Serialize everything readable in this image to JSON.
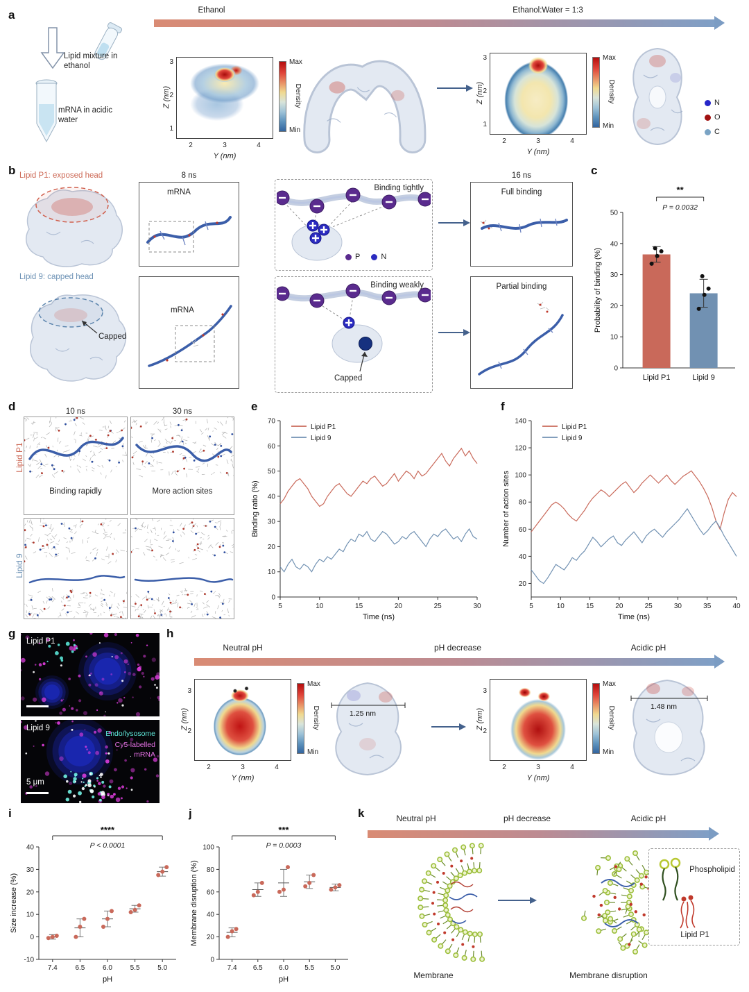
{
  "colors": {
    "lipid_p1_red": "#c9695a",
    "lipid_9_blue": "#7191b2",
    "gradient_start": "#d98b74",
    "gradient_end": "#7b9cc3",
    "purple_p": "#5a2b8e",
    "blue_n": "#2b2bc0",
    "mrna_blue": "#3b5ea9",
    "magenta": "#e33fe3",
    "cyan": "#4fe0d0",
    "atom_n": "#2626c9",
    "atom_o": "#a11212",
    "atom_c": "#7aa3c4"
  },
  "panel_a": {
    "label": "a",
    "arrow_label_left": "Ethanol",
    "arrow_label_right": "Ethanol:Water = 1:3",
    "caption_lipid": "Lipid mixture in ethanol",
    "caption_mrna": "mRNA in acidic water",
    "density1": {
      "colorbar_max": "Max",
      "colorbar_min": "Min",
      "colorbar_label": "Density",
      "xlabel": "Y (nm)",
      "ylabel": "Z (nm)",
      "xticks": [
        "2",
        "3",
        "4"
      ],
      "yticks": [
        "3",
        "2",
        "1"
      ]
    },
    "density2": {
      "colorbar_max": "Max",
      "colorbar_min": "Min",
      "colorbar_label": "Density",
      "xlabel": "Y (nm)",
      "ylabel": "Z (nm)",
      "xticks": [
        "2",
        "3",
        "4"
      ],
      "yticks": [
        "3",
        "2",
        "1"
      ]
    },
    "atom_legend": [
      {
        "label": "N",
        "color": "#2626c9"
      },
      {
        "label": "O",
        "color": "#a11212"
      },
      {
        "label": "C",
        "color": "#7aa3c4"
      }
    ]
  },
  "panel_b": {
    "label": "b",
    "p1_title": "Lipid P1: exposed head",
    "l9_title": "Lipid 9: capped head",
    "t8": "8 ns",
    "t16": "16 ns",
    "mrna1": "mRNA",
    "mrna2": "mRNA",
    "binding_tightly": "Binding tightly",
    "binding_weakly": "Binding weakly",
    "full_binding": "Full binding",
    "partial_binding": "Partial binding",
    "capped1": "Capped",
    "capped2": "Capped",
    "legend_p": "P",
    "legend_n": "N"
  },
  "panel_d": {
    "label": "d",
    "col1": "10 ns",
    "col2": "30 ns",
    "row1": "Lipid P1",
    "row2": "Lipid 9",
    "note1": "Binding rapidly",
    "note2": "More action sites"
  },
  "panel_g": {
    "label": "g",
    "image1_label": "Lipid P1",
    "image2_label": "Lipid 9",
    "legend_endo": "Endo/lysosome",
    "legend_cy5_1": "Cy5-labelled",
    "legend_cy5_2": "mRNA",
    "scale": "5 μm"
  },
  "panel_h": {
    "label": "h",
    "stage1": "Neutral pH",
    "stage2": "pH decrease",
    "stage3": "Acidic pH",
    "density1": {
      "colorbar_max": "Max",
      "colorbar_min": "Min",
      "colorbar_label": "Density",
      "xlabel": "Y (nm)",
      "ylabel": "Z (nm)",
      "xticks": [
        "2",
        "3",
        "4"
      ],
      "yticks": [
        "3",
        "2"
      ]
    },
    "density2": {
      "colorbar_max": "Max",
      "colorbar_min": "Min",
      "colorbar_label": "Density",
      "xlabel": "Y (nm)",
      "ylabel": "Z (nm)",
      "xticks": [
        "2",
        "3",
        "4"
      ],
      "yticks": [
        "3",
        "2"
      ]
    },
    "measure1": "1.25 nm",
    "measure2": "1.48 nm"
  },
  "panel_k": {
    "label": "k",
    "stage1": "Neutral pH",
    "stage2": "pH decrease",
    "stage3": "Acidic pH",
    "membrane": "Membrane",
    "membrane_disruption": "Membrane disruption",
    "phospholipid": "Phospholipid",
    "lipid_p1": "Lipid P1"
  },
  "chart_data": [
    {
      "id": "c",
      "panel_label": "c",
      "type": "bar",
      "categories": [
        "Lipid P1",
        "Lipid 9"
      ],
      "values": [
        36.5,
        24
      ],
      "errors": [
        2.5,
        4.5
      ],
      "points": [
        [
          33.5,
          36,
          37.5,
          38.5
        ],
        [
          19,
          23.5,
          25.5,
          29.5
        ]
      ],
      "bar_colors": [
        "#c9695a",
        "#7191b2"
      ],
      "ylabel": "Probability of binding (%)",
      "ylim": [
        0,
        50
      ],
      "yticks": [
        0,
        10,
        20,
        30,
        40,
        50
      ],
      "significance": "**",
      "p_value": "P = 0.0032"
    },
    {
      "id": "e",
      "panel_label": "e",
      "type": "line",
      "xlabel": "Time (ns)",
      "ylabel": "Binding ratio (%)",
      "xlim": [
        5,
        30
      ],
      "ylim": [
        0,
        70
      ],
      "xticks": [
        5,
        10,
        15,
        20,
        25,
        30
      ],
      "yticks": [
        0,
        10,
        20,
        30,
        40,
        50,
        60,
        70
      ],
      "x_start": 5,
      "x_step": 0.5,
      "series": [
        {
          "name": "Lipid P1",
          "color": "#c9695a",
          "values": [
            37,
            39,
            42,
            44,
            46,
            47,
            45,
            43,
            40,
            38,
            36,
            37,
            40,
            42,
            44,
            45,
            43,
            41,
            40,
            42,
            44,
            46,
            45,
            47,
            48,
            46,
            44,
            45,
            47,
            49,
            46,
            48,
            50,
            49,
            47,
            50,
            48,
            49,
            51,
            53,
            55,
            57,
            54,
            52,
            55,
            57,
            59,
            56,
            58,
            55,
            53
          ]
        },
        {
          "name": "Lipid 9",
          "color": "#7191b2",
          "values": [
            12,
            10,
            13,
            15,
            12,
            11,
            13,
            12,
            10,
            13,
            15,
            14,
            16,
            15,
            17,
            19,
            18,
            21,
            23,
            22,
            25,
            24,
            26,
            23,
            22,
            24,
            26,
            25,
            23,
            21,
            22,
            24,
            23,
            25,
            26,
            24,
            22,
            20,
            23,
            25,
            24,
            26,
            27,
            25,
            23,
            24,
            22,
            25,
            27,
            24,
            23
          ]
        }
      ],
      "legend_position": "top-left",
      "grid": false
    },
    {
      "id": "f",
      "panel_label": "f",
      "type": "line",
      "xlabel": "Time (ns)",
      "ylabel": "Number of action sites",
      "xlim": [
        5,
        40
      ],
      "ylim": [
        10,
        140
      ],
      "xticks": [
        5,
        10,
        15,
        20,
        25,
        30,
        35,
        40
      ],
      "yticks": [
        20,
        40,
        60,
        80,
        100,
        120,
        140
      ],
      "x_start": 5,
      "x_step": 0.7,
      "series": [
        {
          "name": "Lipid P1",
          "color": "#c9695a",
          "values": [
            58,
            62,
            66,
            70,
            74,
            78,
            80,
            78,
            75,
            71,
            68,
            66,
            70,
            74,
            79,
            83,
            86,
            89,
            87,
            84,
            87,
            90,
            93,
            95,
            91,
            87,
            90,
            94,
            97,
            100,
            97,
            94,
            97,
            100,
            96,
            93,
            96,
            99,
            101,
            103,
            99,
            95,
            90,
            84,
            76,
            66,
            60,
            72,
            82,
            87,
            84
          ]
        },
        {
          "name": "Lipid 9",
          "color": "#7191b2",
          "values": [
            30,
            26,
            22,
            20,
            24,
            29,
            34,
            32,
            30,
            34,
            39,
            37,
            41,
            44,
            49,
            54,
            51,
            47,
            50,
            53,
            55,
            50,
            48,
            52,
            55,
            58,
            54,
            50,
            55,
            58,
            60,
            57,
            54,
            58,
            61,
            64,
            67,
            71,
            75,
            70,
            65,
            60,
            56,
            59,
            63,
            66,
            61,
            55,
            50,
            45,
            40
          ]
        }
      ],
      "legend_position": "top-left",
      "grid": false
    },
    {
      "id": "i",
      "panel_label": "i",
      "type": "scatter",
      "categories": [
        "7.4",
        "6.5",
        "6.0",
        "5.5",
        "5.0"
      ],
      "points": [
        [
          -0.5,
          0,
          0.5
        ],
        [
          0,
          4.5,
          8
        ],
        [
          4.5,
          8,
          11.5
        ],
        [
          11,
          12,
          14
        ],
        [
          27.5,
          29,
          31
        ]
      ],
      "means": [
        0,
        4,
        8,
        12.5,
        29
      ],
      "errors": [
        1,
        4,
        3.5,
        1.5,
        2
      ],
      "color": "#c9695a",
      "ylabel": "Size increase (%)",
      "xlabel": "pH",
      "ylim": [
        -10,
        40
      ],
      "yticks": [
        -10,
        0,
        10,
        20,
        30,
        40
      ],
      "significance": "****",
      "p_value": "P < 0.0001"
    },
    {
      "id": "j",
      "panel_label": "j",
      "type": "scatter",
      "categories": [
        "7.4",
        "6.5",
        "6.0",
        "5.5",
        "5.0"
      ],
      "points": [
        [
          20,
          25,
          27
        ],
        [
          57,
          60,
          68
        ],
        [
          60,
          62,
          82
        ],
        [
          65,
          68,
          75
        ],
        [
          62,
          64,
          66
        ]
      ],
      "means": [
        24,
        62,
        68,
        69,
        64
      ],
      "errors": [
        4,
        6,
        12,
        6,
        3
      ],
      "color": "#c9695a",
      "ylabel": "Membrane disruption (%)",
      "xlabel": "pH",
      "ylim": [
        0,
        100
      ],
      "yticks": [
        0,
        20,
        40,
        60,
        80,
        100
      ],
      "significance": "***",
      "p_value": "P = 0.0003"
    }
  ]
}
